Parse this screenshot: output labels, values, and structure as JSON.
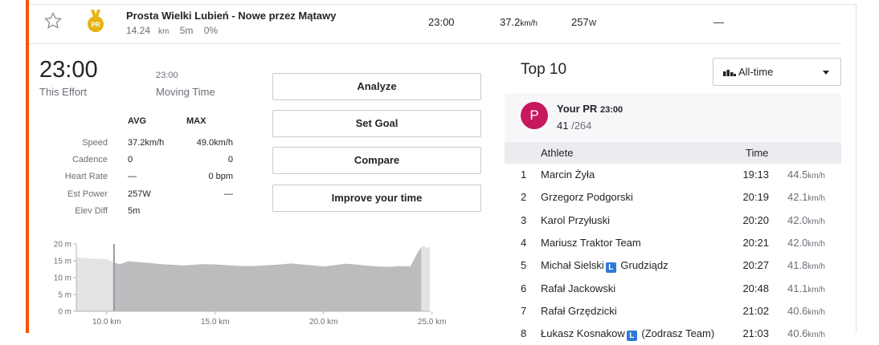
{
  "segment": {
    "name": "Prosta Wielki Lubień - Nowe przez Mątawy",
    "distance": "14.24",
    "distance_unit": "km",
    "elevation": "5m",
    "grade": "0%",
    "time": "23:00",
    "speed": "37.2",
    "speed_unit": "km/h",
    "power": "257",
    "power_unit": "W",
    "heart_rate": "—",
    "medal_label": "PR",
    "medal_color": "#e7b412"
  },
  "effort": {
    "time": "23:00",
    "time_label": "This Effort",
    "moving_time": "23:00",
    "moving_label": "Moving Time"
  },
  "stats": {
    "avg_header": "AVG",
    "max_header": "MAX",
    "rows": [
      {
        "label": "Speed",
        "avg": "37.2km/h",
        "max": "49.0km/h"
      },
      {
        "label": "Cadence",
        "avg": "0",
        "max": "0"
      },
      {
        "label": "Heart Rate",
        "avg": "—",
        "max": "0 bpm"
      },
      {
        "label": "Est Power",
        "avg": "257W",
        "max": "—"
      },
      {
        "label": "Elev Diff",
        "avg": "5m",
        "max": ""
      }
    ]
  },
  "buttons": {
    "analyze": "Analyze",
    "set_goal": "Set Goal",
    "compare": "Compare",
    "improve": "Improve your time"
  },
  "chart_data": {
    "type": "area",
    "y_ticks": [
      "20 m",
      "15 m",
      "10 m",
      "5 m",
      "0 m"
    ],
    "x_ticks": [
      "10.0 km",
      "15.0 km",
      "20.0 km",
      "25.0 km"
    ],
    "x_tick_values": [
      10,
      15,
      20,
      25
    ],
    "xlim": [
      8.6,
      24.9
    ],
    "ylim": [
      0,
      20
    ],
    "segment_range": [
      10.3,
      24.5
    ],
    "x": [
      8.6,
      9.0,
      9.5,
      10.0,
      10.3,
      10.6,
      11.0,
      11.5,
      12.0,
      12.5,
      13.0,
      13.5,
      14.0,
      14.5,
      15.0,
      15.5,
      16.0,
      16.5,
      17.0,
      17.5,
      18.0,
      18.5,
      19.0,
      19.5,
      20.0,
      20.5,
      21.0,
      21.5,
      22.0,
      22.5,
      23.0,
      23.5,
      24.0,
      24.3,
      24.5,
      24.6,
      24.8,
      24.9
    ],
    "y": [
      16,
      15.8,
      15.6,
      15.5,
      14.5,
      14,
      14.8,
      14.6,
      14.3,
      14,
      13.8,
      13.6,
      13.8,
      14,
      13.9,
      13.7,
      13.5,
      13.4,
      13.5,
      13.7,
      13.9,
      14.2,
      13.9,
      13.6,
      13.3,
      13.7,
      14.1,
      13.9,
      13.5,
      13.3,
      13.2,
      13.4,
      13.3,
      17,
      19,
      19.5,
      18.8,
      19.2
    ],
    "colors": {
      "outside": "#e3e3e6",
      "inside": "#bcbcbe",
      "highlight": "#9b9b9e",
      "axis": "#b5b5ba"
    }
  },
  "leaderboard": {
    "title": "Top 10",
    "filter": "All-time",
    "pr_avatar": "P",
    "pr_label": "Your PR",
    "pr_time": "23:00",
    "pr_rank": "41",
    "pr_total": "/264",
    "col_athlete": "Athlete",
    "col_time": "Time",
    "speed_unit": "km/h",
    "rows": [
      {
        "rank": "1",
        "name": "Marcin Żyła",
        "time": "19:13",
        "speed": "44.5"
      },
      {
        "rank": "2",
        "name": "Grzegorz Podgorski",
        "time": "20:19",
        "speed": "42.1"
      },
      {
        "rank": "3",
        "name": "Karol Przyłuski",
        "time": "20:20",
        "speed": "42.0"
      },
      {
        "rank": "4",
        "name": "Mariusz Traktor Team",
        "time": "20:21",
        "speed": "42.0"
      },
      {
        "rank": "5",
        "name": "Michał Sielski",
        "flag": "L",
        "name_suffix": "Grudziądz",
        "time": "20:27",
        "speed": "41.8"
      },
      {
        "rank": "6",
        "name": "Rafał Jackowski",
        "time": "20:48",
        "speed": "41.1"
      },
      {
        "rank": "7",
        "name": "Rafał Grzędzicki",
        "time": "21:02",
        "speed": "40.6"
      },
      {
        "rank": "8",
        "name": "Łukasz Kosnakow",
        "flag": "L",
        "name_suffix": "(Zodrasz Team)",
        "time": "21:03",
        "speed": "40.6"
      }
    ]
  }
}
